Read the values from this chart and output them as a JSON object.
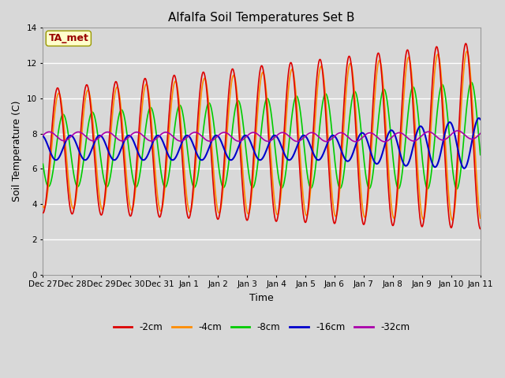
{
  "title": "Alfalfa Soil Temperatures Set B",
  "xlabel": "Time",
  "ylabel": "Soil Temperature (C)",
  "xlim": [
    0,
    15
  ],
  "ylim": [
    0,
    14
  ],
  "yticks": [
    0,
    2,
    4,
    6,
    8,
    10,
    12,
    14
  ],
  "xtick_labels": [
    "Dec 27",
    "Dec 28",
    "Dec 29",
    "Dec 30",
    "Dec 31",
    "Jan 1",
    "Jan 2",
    "Jan 3",
    "Jan 4",
    "Jan 5",
    "Jan 6",
    "Jan 7",
    "Jan 8",
    "Jan 9",
    "Jan 10",
    "Jan 11"
  ],
  "background_color": "#d8d8d8",
  "plot_bg_color": "#d8d8d8",
  "grid_color": "#ffffff",
  "colors": {
    "-2cm": "#dd0000",
    "-4cm": "#ff8c00",
    "-8cm": "#00cc00",
    "-16cm": "#0000cc",
    "-32cm": "#aa00aa"
  },
  "ta_met_box": {
    "text": "TA_met",
    "fontsize": 9,
    "text_color": "#990000",
    "bg_color": "#ffffcc",
    "edge_color": "#999900"
  }
}
